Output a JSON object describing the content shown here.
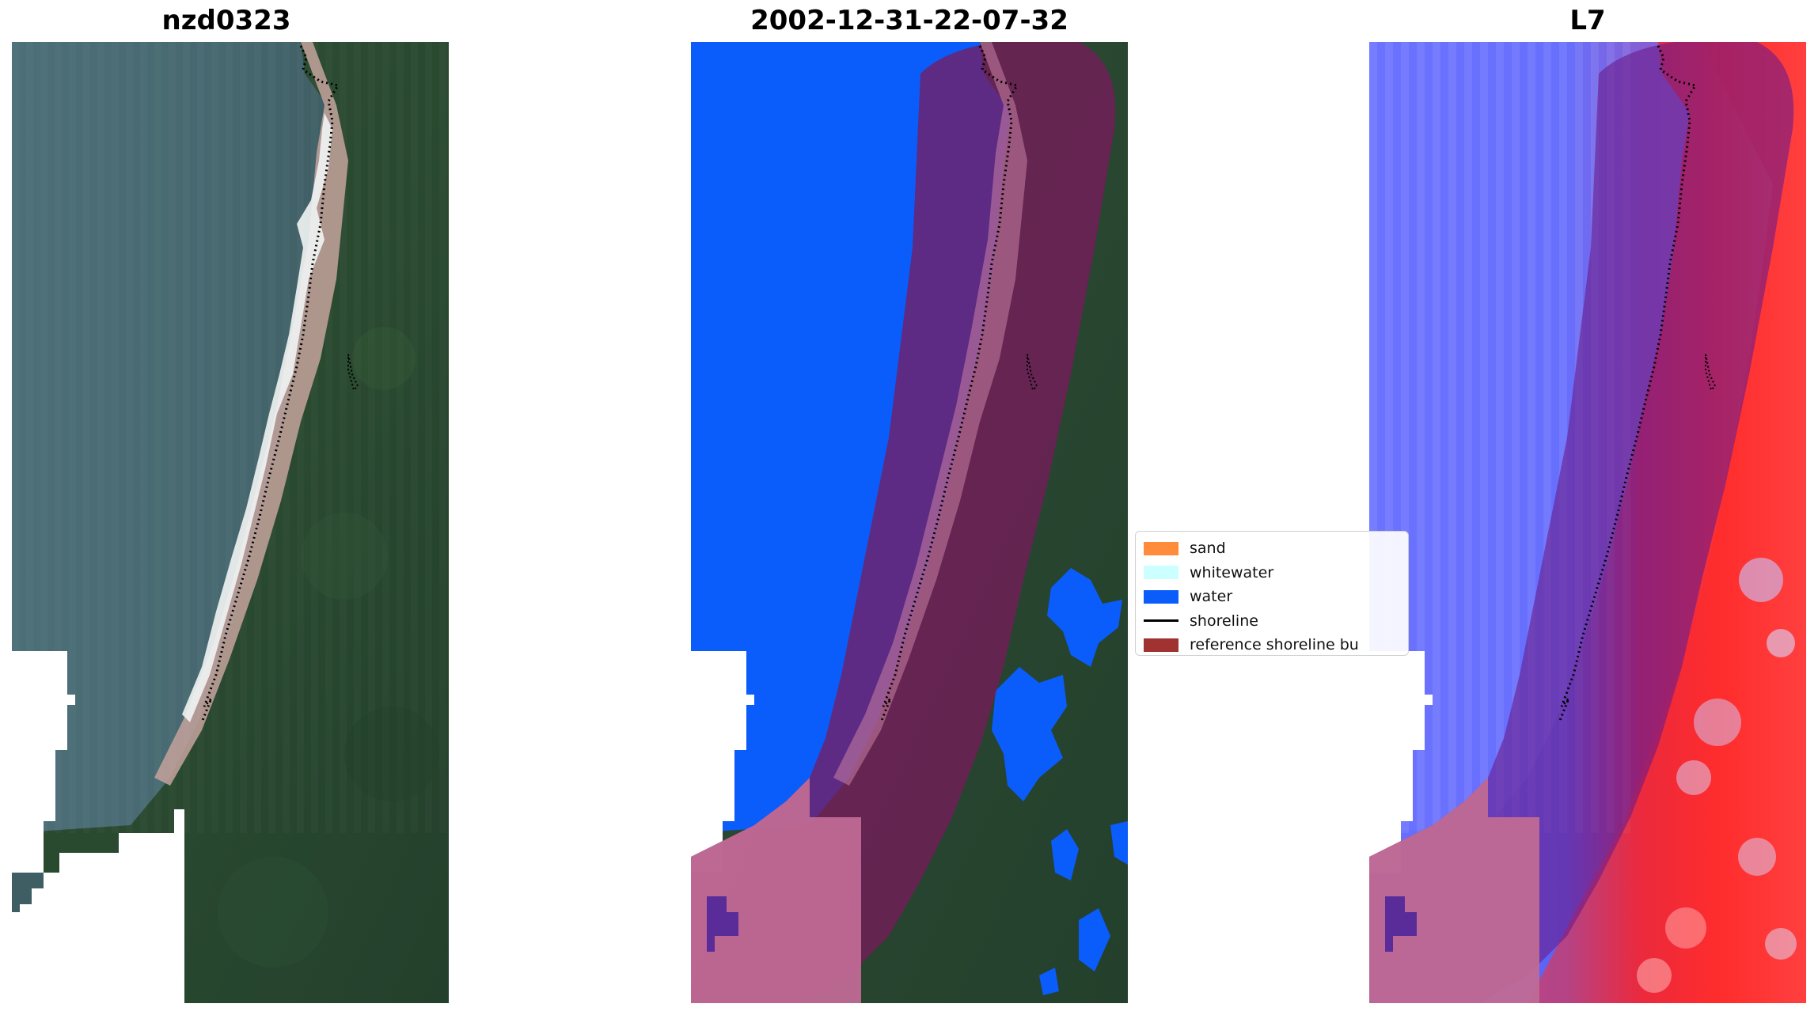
{
  "figure": {
    "panels": [
      {
        "title": "nzd0323",
        "image": "rgb-satellite-image"
      },
      {
        "title": "2002-12-31-22-07-32",
        "image": "classified-image"
      },
      {
        "title": "L7",
        "image": "water-index-image"
      }
    ],
    "legend": {
      "placement": "center",
      "items": [
        {
          "label": "sand",
          "color": "#ff8c3a",
          "kind": "patch"
        },
        {
          "label": "whitewater",
          "color": "#ccffff",
          "kind": "patch"
        },
        {
          "label": "water",
          "color": "#0a5dfa",
          "kind": "patch"
        },
        {
          "label": "shoreline",
          "color": "#000000",
          "kind": "line"
        },
        {
          "label": "reference shoreline bu",
          "color": "#a03232",
          "kind": "patch"
        }
      ]
    },
    "colors": {
      "ocean": "#4a6f77",
      "forest": "#2c4a33",
      "beach": "#c9a59c",
      "surf": "#ffffff",
      "water_class": "#0a5dfa",
      "buffer_overlay": "#8a1440",
      "index_low": "#5b63ff",
      "index_high": "#ff2a2a"
    }
  }
}
